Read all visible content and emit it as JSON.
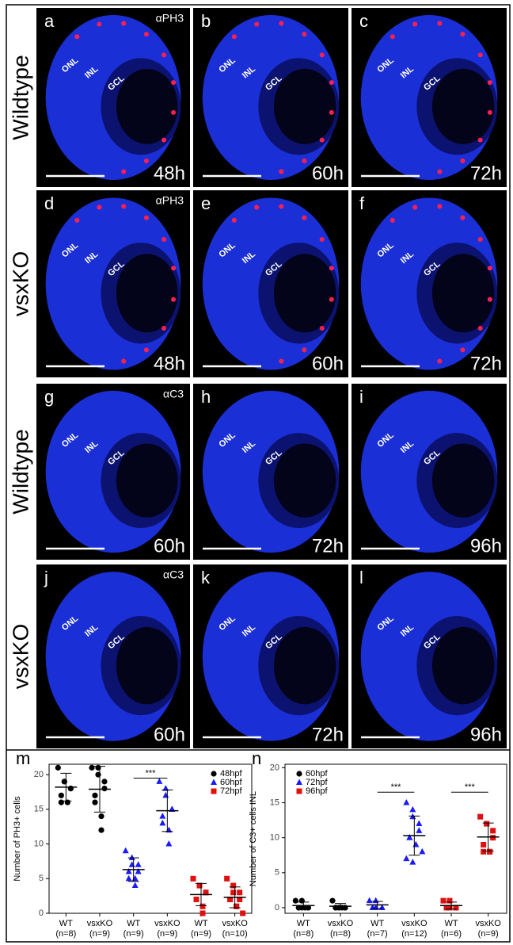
{
  "row_labels": [
    "Wildtype",
    "vsxKO",
    "Wildtype",
    "vsxKO"
  ],
  "panels": [
    {
      "letter": "a",
      "stain": "αPH3",
      "layers": [
        "ONL",
        "INL",
        "GCL"
      ],
      "time": "48h"
    },
    {
      "letter": "b",
      "layers": [
        "ONL",
        "INL",
        "GCL"
      ],
      "time": "60h"
    },
    {
      "letter": "c",
      "layers": [
        "ONL",
        "INL",
        "GCL"
      ],
      "time": "72h"
    },
    {
      "letter": "d",
      "stain": "αPH3",
      "layers": [
        "ONL",
        "INL",
        "GCL"
      ],
      "time": "48h"
    },
    {
      "letter": "e",
      "layers": [
        "ONL",
        "INL",
        "GCL"
      ],
      "time": "60h"
    },
    {
      "letter": "f",
      "layers": [
        "ONL",
        "INL",
        "GCL"
      ],
      "time": "72h"
    },
    {
      "letter": "g",
      "stain": "αC3",
      "layers": [
        "ONL",
        "INL",
        "GCL"
      ],
      "time": "60h"
    },
    {
      "letter": "h",
      "layers": [
        "ONL",
        "INL",
        "GCL"
      ],
      "time": "72h"
    },
    {
      "letter": "i",
      "layers": [
        "ONL",
        "INL",
        "GCL"
      ],
      "time": "96h"
    },
    {
      "letter": "j",
      "stain": "αC3",
      "layers": [
        "ONL",
        "INL",
        "GCL"
      ],
      "time": "60h"
    },
    {
      "letter": "k",
      "layers": [
        "ONL",
        "INL",
        "GCL"
      ],
      "time": "72h"
    },
    {
      "letter": "l",
      "layers": [
        "ONL",
        "INL",
        "GCL"
      ],
      "time": "96h"
    }
  ],
  "chart_data": [
    {
      "type": "scatter",
      "panel_letter": "m",
      "y_label": "Number of PH3+ cells",
      "categories": [
        "WT",
        "vsxKO",
        "WT",
        "vsxKO",
        "WT",
        "vsxKO"
      ],
      "n_labels": [
        "(n=8)",
        "(n=9)",
        "(n=9)",
        "(n=9)",
        "(n=9)",
        "(n=10)"
      ],
      "ylim": [
        0,
        21.5
      ],
      "yticks": [
        0,
        5,
        10,
        15,
        20
      ],
      "series": [
        {
          "name": "48hpf",
          "color": "#000000",
          "marker": "circle",
          "values": [
            [
              21,
              19,
              19,
              18,
              18,
              17,
              16,
              16
            ],
            [
              21,
              21,
              20,
              19,
              18,
              17,
              16,
              14,
              12
            ],
            null,
            null,
            null,
            null
          ],
          "means": [
            18.2,
            17.9,
            null,
            null,
            null,
            null
          ],
          "sds": [
            2,
            3.3,
            null,
            null,
            null,
            null
          ]
        },
        {
          "name": "60hpf",
          "color": "#1a1aff",
          "marker": "triangle",
          "values": [
            null,
            null,
            [
              9,
              8,
              7,
              7,
              6,
              6,
              5,
              5,
              4
            ],
            [
              19,
              18,
              17,
              15,
              15,
              14,
              13,
              12,
              10
            ],
            null,
            null
          ],
          "means": [
            null,
            null,
            6.3,
            14.8,
            null,
            null
          ],
          "sds": [
            null,
            null,
            1.7,
            3,
            null,
            null
          ]
        },
        {
          "name": "72hpf",
          "color": "#e01010",
          "marker": "square",
          "values": [
            null,
            null,
            null,
            null,
            [
              5,
              4,
              4,
              3,
              3,
              2,
              2,
              1,
              0
            ],
            [
              5,
              4,
              3,
              3,
              2,
              2,
              2,
              1,
              1,
              0
            ]
          ],
          "means": [
            null,
            null,
            null,
            null,
            2.7,
            2.3
          ],
          "sds": [
            null,
            null,
            null,
            null,
            1.6,
            1.5
          ]
        }
      ],
      "annotations": [
        {
          "text": "***",
          "categories": [
            2,
            3
          ],
          "y": 19.5
        }
      ]
    },
    {
      "type": "scatter",
      "panel_letter": "n",
      "y_label": "Number of C3+ cells INL",
      "categories": [
        "WT",
        "vsxKO",
        "WT",
        "vsxKO",
        "WT",
        "vsxKO"
      ],
      "n_labels": [
        "(n=8)",
        "(n=8)",
        "(n=7)",
        "(n=12)",
        "(n=6)",
        "(n=9)"
      ],
      "ylim": [
        -0.8,
        20.5
      ],
      "yticks": [
        0,
        5,
        10,
        15,
        20
      ],
      "series": [
        {
          "name": "60hpf",
          "color": "#000000",
          "marker": "circle",
          "values": [
            [
              1,
              1,
              0,
              0,
              0,
              0,
              0,
              0
            ],
            [
              1,
              0,
              0,
              0,
              0,
              0,
              0,
              0
            ],
            null,
            null,
            null,
            null
          ],
          "means": [
            0.3,
            0.2,
            null,
            null,
            null,
            null
          ],
          "sds": [
            0.5,
            0.4,
            null,
            null,
            null,
            null
          ]
        },
        {
          "name": "72hpf",
          "color": "#1a1aff",
          "marker": "triangle",
          "values": [
            null,
            null,
            [
              1,
              1,
              0,
              0,
              0,
              0,
              0
            ],
            [
              15,
              14,
              13,
              12,
              11,
              10,
              10,
              9,
              9,
              8,
              7,
              6.5
            ],
            null,
            null
          ],
          "means": [
            null,
            null,
            0.4,
            10.3,
            null,
            null
          ],
          "sds": [
            null,
            null,
            0.5,
            2.8,
            null,
            null
          ]
        },
        {
          "name": "96hpf",
          "color": "#e01010",
          "marker": "square",
          "values": [
            null,
            null,
            null,
            null,
            [
              1,
              1,
              0,
              0,
              0,
              0
            ],
            [
              13,
              12,
              12,
              11,
              10,
              9,
              8,
              8,
              8
            ]
          ],
          "means": [
            null,
            null,
            null,
            null,
            0.3,
            10.1
          ],
          "sds": [
            null,
            null,
            null,
            null,
            0.5,
            2
          ]
        }
      ],
      "annotations": [
        {
          "text": "***",
          "categories": [
            2,
            3
          ],
          "y": 16.5
        },
        {
          "text": "***",
          "categories": [
            4,
            5
          ],
          "y": 16.5
        }
      ]
    }
  ]
}
